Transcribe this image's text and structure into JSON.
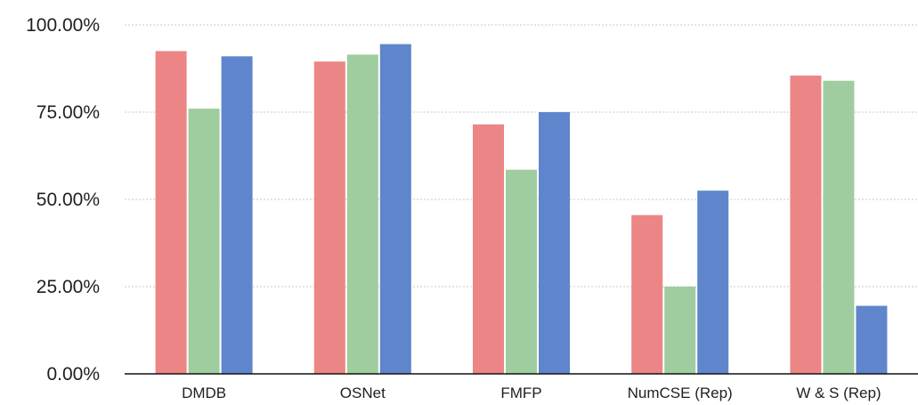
{
  "chart_data": {
    "type": "bar",
    "categories": [
      "DMDB",
      "OSNet",
      "FMFP",
      "NumCSE (Rep)",
      "W & S (Rep)"
    ],
    "series": [
      {
        "color": "#ec8585",
        "values": [
          92.5,
          89.5,
          71.5,
          45.5,
          85.5
        ]
      },
      {
        "color": "#9fcd9f",
        "values": [
          76.0,
          91.5,
          58.5,
          25.0,
          84.0
        ]
      },
      {
        "color": "#5f86cc",
        "values": [
          91.0,
          94.5,
          75.0,
          52.5,
          19.5
        ]
      }
    ],
    "y_ticks": [
      "0.00%",
      "25.00%",
      "50.00%",
      "75.00%",
      "100.00%"
    ],
    "ylim": [
      0,
      100
    ],
    "grid": true,
    "legend": "none"
  }
}
